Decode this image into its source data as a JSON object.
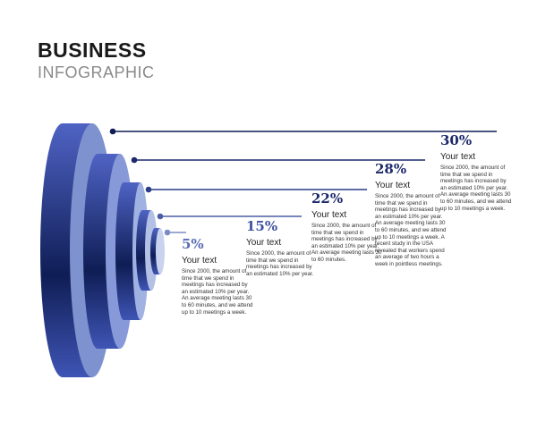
{
  "header": {
    "title": "BUSINESS",
    "subtitle": "INFOGRAPHIC"
  },
  "colors": {
    "navy": "#1c2a6b",
    "blue": "#3e52a8",
    "light": "#8ea0d8"
  },
  "items": [
    {
      "percent": "5%",
      "heading": "Your text",
      "body": "Since 2000, the amount of time that we spend in meetings has increased by an estimated 10% per year. An average meeting lasts 30 to 60 minutes, and we attend up to 10 meetings a week.",
      "color": "#5a6db3"
    },
    {
      "percent": "15%",
      "heading": "Your text",
      "body": "Since 2000, the amount of time that we spend in meetings has increased by an estimated 10% per year.",
      "color": "#3e52a0"
    },
    {
      "percent": "22%",
      "heading": "Your text",
      "body": "Since 2000, the amount of time that we spend in meetings has increased by an estimated 10% per year. An average meeting lasts 30 to 60 minutes.",
      "color": "#1c2a6b"
    },
    {
      "percent": "28%",
      "heading": "Your text",
      "body": "Since 2000, the amount of time that we spend in meetings has increased by an estimated 10% per year. An average meeting lasts 30 to 60 minutes, and we attend up to 10 meetings a week. A recent study in the USA revealed that workers spend an average of two hours a week in pointless meetings.",
      "color": "#1c2a6b"
    },
    {
      "percent": "30%",
      "heading": "Your text",
      "body": "Since 2000, the amount of time that we spend in meetings has increased by an estimated 10% per year. An average meeting lasts 30 to 60 minutes, and we attend up to 10 meetings a week.",
      "color": "#1c2a6b"
    }
  ]
}
